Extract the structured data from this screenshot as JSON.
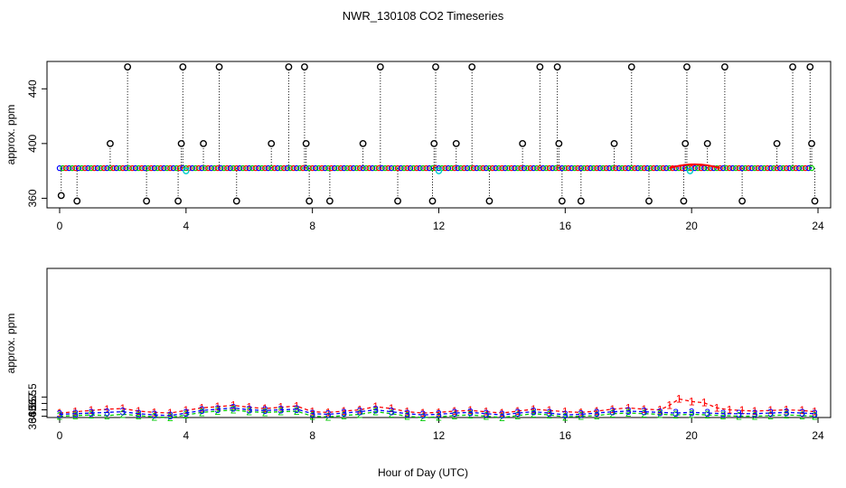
{
  "chart_title": "NWR_130108  CO2 Timeseries",
  "x_axis_label": "Hour of Day (UTC)",
  "colors": {
    "red": "#ff0000",
    "green": "#00cc00",
    "blue": "#0000ff",
    "black": "#000000",
    "cyan": "#00cccc"
  },
  "chart_data": [
    {
      "type": "scatter",
      "title": "",
      "ylabel": "approx. ppm",
      "xlabel": "",
      "xlim": [
        -0.4,
        24.4
      ],
      "ylim": [
        353,
        460
      ],
      "xticks": [
        0,
        4,
        8,
        12,
        16,
        20,
        24
      ],
      "yticks": [
        360,
        400,
        440
      ],
      "ytick_labels": [
        "360",
        "400",
        "440"
      ],
      "baseline": 382,
      "outliers": [
        {
          "x": 0.05,
          "y": 362
        },
        {
          "x": 0.55,
          "y": 358
        },
        {
          "x": 1.6,
          "y": 400
        },
        {
          "x": 2.15,
          "y": 456
        },
        {
          "x": 2.75,
          "y": 358
        },
        {
          "x": 3.75,
          "y": 358
        },
        {
          "x": 3.85,
          "y": 400
        },
        {
          "x": 3.9,
          "y": 456
        },
        {
          "x": 4.55,
          "y": 400
        },
        {
          "x": 5.05,
          "y": 456
        },
        {
          "x": 5.6,
          "y": 358
        },
        {
          "x": 6.7,
          "y": 400
        },
        {
          "x": 7.25,
          "y": 456
        },
        {
          "x": 7.75,
          "y": 456
        },
        {
          "x": 7.8,
          "y": 400
        },
        {
          "x": 7.9,
          "y": 358
        },
        {
          "x": 8.55,
          "y": 358
        },
        {
          "x": 9.6,
          "y": 400
        },
        {
          "x": 10.15,
          "y": 456
        },
        {
          "x": 10.7,
          "y": 358
        },
        {
          "x": 11.8,
          "y": 358
        },
        {
          "x": 11.85,
          "y": 400
        },
        {
          "x": 11.9,
          "y": 456
        },
        {
          "x": 12.55,
          "y": 400
        },
        {
          "x": 13.05,
          "y": 456
        },
        {
          "x": 13.6,
          "y": 358
        },
        {
          "x": 14.65,
          "y": 400
        },
        {
          "x": 15.2,
          "y": 456
        },
        {
          "x": 15.75,
          "y": 456
        },
        {
          "x": 15.8,
          "y": 400
        },
        {
          "x": 15.9,
          "y": 358
        },
        {
          "x": 16.5,
          "y": 358
        },
        {
          "x": 17.55,
          "y": 400
        },
        {
          "x": 18.1,
          "y": 456
        },
        {
          "x": 18.65,
          "y": 358
        },
        {
          "x": 19.75,
          "y": 358
        },
        {
          "x": 19.8,
          "y": 400
        },
        {
          "x": 19.85,
          "y": 456
        },
        {
          "x": 20.5,
          "y": 400
        },
        {
          "x": 21.05,
          "y": 456
        },
        {
          "x": 21.6,
          "y": 358
        },
        {
          "x": 22.7,
          "y": 400
        },
        {
          "x": 23.2,
          "y": 456
        },
        {
          "x": 23.75,
          "y": 456
        },
        {
          "x": 23.8,
          "y": 400
        },
        {
          "x": 23.9,
          "y": 358
        }
      ],
      "cyan_points": [
        {
          "x": 4.0,
          "y": 380
        },
        {
          "x": 12.0,
          "y": 380
        },
        {
          "x": 19.95,
          "y": 380
        }
      ],
      "red_bump": {
        "x_start": 19.3,
        "x_end": 20.9,
        "peak": 385
      }
    },
    {
      "type": "line",
      "title": "",
      "ylabel": "approx. ppm",
      "xlabel": "Hour of Day (UTC)",
      "xlim": [
        -0.4,
        24.4
      ],
      "ylim": [
        364.3,
        387.6
      ],
      "xticks": [
        0,
        4,
        8,
        12,
        16,
        20,
        24
      ],
      "yticks": [
        364.5,
        365.5,
        366.5,
        367.5
      ],
      "ytick_labels": [
        "364.5",
        "365.5",
        "366.5",
        "367.5"
      ],
      "series": [
        {
          "name": "1",
          "color": "red",
          "label": "1",
          "x": [
            0,
            0.5,
            1,
            1.5,
            2,
            2.5,
            3,
            3.5,
            4,
            4.5,
            5,
            5.5,
            6,
            6.5,
            7,
            7.5,
            8,
            8.5,
            9,
            9.5,
            10,
            10.5,
            11,
            11.5,
            12,
            12.5,
            13,
            13.5,
            14,
            14.5,
            15,
            15.5,
            16,
            16.5,
            17,
            17.5,
            18,
            18.5,
            19,
            19.3,
            19.6,
            20,
            20.4,
            20.8,
            21.2,
            21.6,
            22,
            22.5,
            23,
            23.5,
            23.9
          ],
          "y": [
            365.0,
            365.2,
            365.4,
            365.6,
            365.7,
            365.3,
            365.1,
            365.0,
            365.4,
            365.8,
            366.0,
            366.2,
            365.9,
            365.7,
            365.9,
            366.1,
            365.2,
            365.1,
            365.3,
            365.5,
            366.0,
            365.7,
            365.2,
            365.0,
            365.1,
            365.3,
            365.4,
            365.2,
            365.0,
            365.3,
            365.6,
            365.4,
            365.2,
            365.1,
            365.3,
            365.6,
            365.8,
            365.6,
            365.5,
            366.2,
            367.2,
            366.8,
            366.6,
            365.8,
            365.5,
            365.4,
            365.3,
            365.4,
            365.5,
            365.4,
            365.2
          ]
        },
        {
          "name": "2",
          "color": "green",
          "label": "2",
          "x": [
            0,
            0.5,
            1,
            1.5,
            2,
            2.5,
            3,
            3.5,
            4,
            4.5,
            5,
            5.5,
            6,
            6.5,
            7,
            7.5,
            8,
            8.5,
            9,
            9.5,
            10,
            10.5,
            11,
            11.5,
            12,
            12.5,
            13,
            13.5,
            14,
            14.5,
            15,
            15.5,
            16,
            16.5,
            17,
            17.5,
            18,
            18.5,
            19,
            19.5,
            20,
            20.5,
            21,
            21.5,
            22,
            22.5,
            23,
            23.5,
            23.9
          ],
          "y": [
            364.5,
            364.6,
            364.7,
            364.6,
            364.8,
            364.6,
            364.4,
            364.3,
            364.7,
            365.1,
            365.3,
            365.5,
            365.2,
            365.1,
            365.2,
            365.3,
            364.5,
            364.4,
            364.6,
            364.8,
            365.2,
            364.9,
            364.5,
            364.3,
            364.4,
            364.6,
            364.7,
            364.5,
            364.3,
            364.6,
            364.9,
            364.7,
            364.4,
            364.5,
            364.6,
            364.9,
            365.0,
            364.9,
            364.8,
            364.7,
            364.8,
            364.7,
            364.6,
            364.5,
            364.5,
            364.6,
            364.7,
            364.6,
            364.5
          ]
        },
        {
          "name": "3",
          "color": "blue",
          "label": "3",
          "x": [
            0,
            0.5,
            1,
            1.5,
            2,
            2.5,
            3,
            3.5,
            4,
            4.5,
            5,
            5.5,
            6,
            6.5,
            7,
            7.5,
            8,
            8.5,
            9,
            9.5,
            10,
            10.5,
            11,
            11.5,
            12,
            12.5,
            13,
            13.5,
            14,
            14.5,
            15,
            15.5,
            16,
            16.5,
            17,
            17.5,
            18,
            18.5,
            19,
            19.5,
            20,
            20.5,
            21,
            21.5,
            22,
            22.5,
            23,
            23.5,
            23.9
          ],
          "y": [
            364.8,
            364.9,
            365.0,
            365.1,
            365.2,
            364.9,
            364.7,
            364.6,
            365.0,
            365.4,
            365.6,
            365.8,
            365.5,
            365.4,
            365.5,
            365.6,
            364.9,
            364.8,
            365.0,
            365.2,
            365.5,
            365.2,
            364.9,
            364.7,
            364.8,
            365.0,
            365.1,
            364.9,
            364.7,
            365.0,
            365.2,
            365.0,
            364.7,
            364.8,
            365.0,
            365.2,
            365.3,
            365.2,
            365.1,
            365.0,
            365.1,
            365.0,
            364.9,
            364.9,
            364.9,
            365.0,
            365.1,
            365.0,
            364.9
          ]
        }
      ]
    }
  ]
}
